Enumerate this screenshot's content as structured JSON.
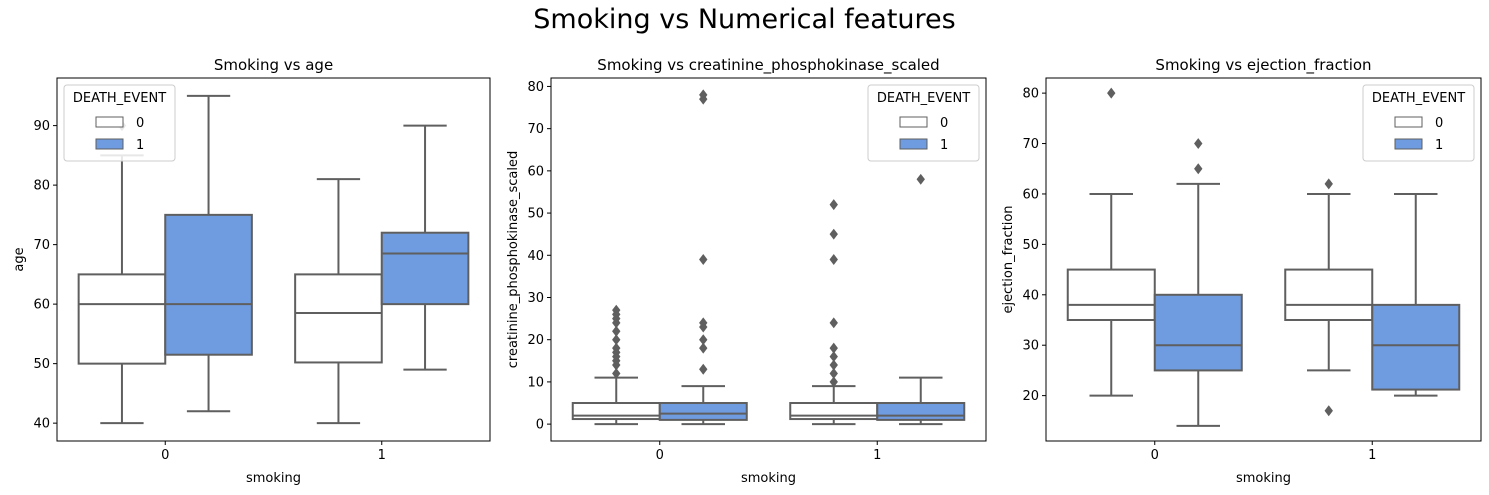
{
  "figure": {
    "suptitle": "Smoking vs Numerical features"
  },
  "legend_title": "DEATH_EVENT",
  "colors": {
    "event_0": "#ffffff",
    "event_1": "#6f9be0",
    "line": "#5f5f5f",
    "flier": "#5f5f5f"
  },
  "chart_data": [
    {
      "type": "box",
      "title": "Smoking vs age",
      "xlabel": "smoking",
      "ylabel": "age",
      "categories": [
        "0",
        "1"
      ],
      "hue": [
        "0",
        "1"
      ],
      "ylim": [
        37,
        98
      ],
      "yticks": [
        40,
        50,
        60,
        70,
        80,
        90
      ],
      "legend_position": "upper-left",
      "boxes": [
        {
          "smoking": "0",
          "death_event": "0",
          "whislo": 40,
          "q1": 50,
          "med": 60,
          "q3": 65,
          "whishi": 85,
          "fliers": [
            90
          ]
        },
        {
          "smoking": "0",
          "death_event": "1",
          "whislo": 42,
          "q1": 51.5,
          "med": 60,
          "q3": 75,
          "whishi": 95,
          "fliers": []
        },
        {
          "smoking": "1",
          "death_event": "0",
          "whislo": 40,
          "q1": 50.2,
          "med": 58.5,
          "q3": 65,
          "whishi": 81,
          "fliers": []
        },
        {
          "smoking": "1",
          "death_event": "1",
          "whislo": 49,
          "q1": 60,
          "med": 68.5,
          "q3": 72,
          "whishi": 90,
          "fliers": []
        }
      ]
    },
    {
      "type": "box",
      "title": "Smoking vs creatinine_phosphokinase_scaled",
      "xlabel": "smoking",
      "ylabel": "creatinine_phosphokinase_scaled",
      "categories": [
        "0",
        "1"
      ],
      "hue": [
        "0",
        "1"
      ],
      "ylim": [
        -4,
        82
      ],
      "yticks": [
        0,
        10,
        20,
        30,
        40,
        50,
        60,
        70,
        80
      ],
      "legend_position": "upper-right",
      "boxes": [
        {
          "smoking": "0",
          "death_event": "0",
          "whislo": 0,
          "q1": 1.2,
          "med": 2,
          "q3": 5,
          "whishi": 11,
          "fliers": [
            12,
            14,
            15,
            16,
            17,
            18,
            20,
            22,
            24,
            25,
            26,
            27
          ]
        },
        {
          "smoking": "0",
          "death_event": "1",
          "whislo": 0,
          "q1": 1,
          "med": 2.5,
          "q3": 5,
          "whishi": 9,
          "fliers": [
            13,
            18,
            20,
            23,
            24,
            39,
            77,
            78
          ]
        },
        {
          "smoking": "1",
          "death_event": "0",
          "whislo": 0,
          "q1": 1.2,
          "med": 2,
          "q3": 5,
          "whishi": 9,
          "fliers": [
            10,
            12,
            14,
            16,
            18,
            24,
            39,
            45,
            52
          ]
        },
        {
          "smoking": "1",
          "death_event": "1",
          "whislo": 0,
          "q1": 1,
          "med": 2,
          "q3": 5,
          "whishi": 11,
          "fliers": [
            58
          ]
        }
      ]
    },
    {
      "type": "box",
      "title": "Smoking vs ejection_fraction",
      "xlabel": "smoking",
      "ylabel": "ejection_fraction",
      "categories": [
        "0",
        "1"
      ],
      "hue": [
        "0",
        "1"
      ],
      "ylim": [
        11,
        83
      ],
      "yticks": [
        20,
        30,
        40,
        50,
        60,
        70,
        80
      ],
      "legend_position": "upper-right",
      "boxes": [
        {
          "smoking": "0",
          "death_event": "0",
          "whislo": 20,
          "q1": 35,
          "med": 38,
          "q3": 45,
          "whishi": 60,
          "fliers": [
            80
          ]
        },
        {
          "smoking": "0",
          "death_event": "1",
          "whislo": 14,
          "q1": 25,
          "med": 30,
          "q3": 40,
          "whishi": 62,
          "fliers": [
            65,
            70
          ]
        },
        {
          "smoking": "1",
          "death_event": "0",
          "whislo": 25,
          "q1": 35,
          "med": 38,
          "q3": 45,
          "whishi": 60,
          "fliers": [
            17,
            62
          ]
        },
        {
          "smoking": "1",
          "death_event": "1",
          "whislo": 20,
          "q1": 21.2,
          "med": 30,
          "q3": 38,
          "whishi": 60,
          "fliers": []
        }
      ]
    }
  ]
}
